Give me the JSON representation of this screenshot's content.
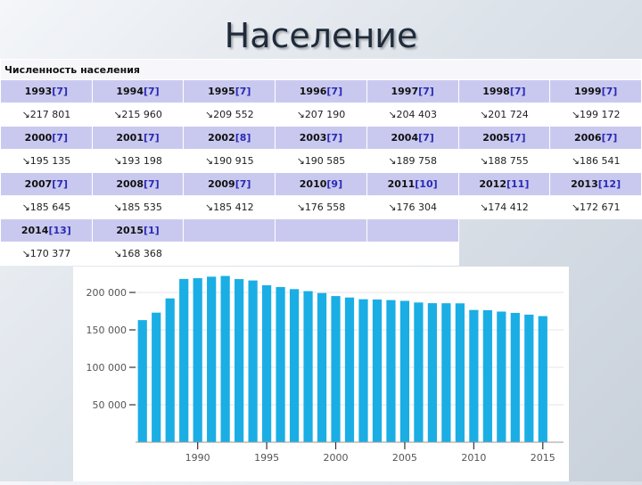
{
  "title": "Население",
  "table": {
    "caption": "Численность населения",
    "arrow": "↘",
    "rows": [
      {
        "years": [
          {
            "year": "1993",
            "ref": "[7]"
          },
          {
            "year": "1994",
            "ref": "[7]"
          },
          {
            "year": "1995",
            "ref": "[7]"
          },
          {
            "year": "1996",
            "ref": "[7]"
          },
          {
            "year": "1997",
            "ref": "[7]"
          },
          {
            "year": "1998",
            "ref": "[7]"
          },
          {
            "year": "1999",
            "ref": "[7]"
          }
        ],
        "values": [
          "217 801",
          "215 960",
          "209 552",
          "207 190",
          "204 403",
          "201 724",
          "199 172"
        ]
      },
      {
        "years": [
          {
            "year": "2000",
            "ref": "[7]"
          },
          {
            "year": "2001",
            "ref": "[7]"
          },
          {
            "year": "2002",
            "ref": "[8]"
          },
          {
            "year": "2003",
            "ref": "[7]"
          },
          {
            "year": "2004",
            "ref": "[7]"
          },
          {
            "year": "2005",
            "ref": "[7]"
          },
          {
            "year": "2006",
            "ref": "[7]"
          }
        ],
        "values": [
          "195 135",
          "193 198",
          "190 915",
          "190 585",
          "189 758",
          "188 755",
          "186 541"
        ]
      },
      {
        "years": [
          {
            "year": "2007",
            "ref": "[7]"
          },
          {
            "year": "2008",
            "ref": "[7]"
          },
          {
            "year": "2009",
            "ref": "[7]"
          },
          {
            "year": "2010",
            "ref": "[9]"
          },
          {
            "year": "2011",
            "ref": "[10]"
          },
          {
            "year": "2012",
            "ref": "[11]"
          },
          {
            "year": "2013",
            "ref": "[12]"
          }
        ],
        "values": [
          "185 645",
          "185 535",
          "185 412",
          "176 558",
          "176 304",
          "174 412",
          "172 671"
        ]
      },
      {
        "years": [
          {
            "year": "2014",
            "ref": "[13]"
          },
          {
            "year": "2015",
            "ref": "[1]"
          }
        ],
        "values": [
          "170 377",
          "168 368"
        ]
      }
    ]
  },
  "chart_data": {
    "type": "bar",
    "x": [
      1986,
      1987,
      1988,
      1989,
      1990,
      1991,
      1992,
      1993,
      1994,
      1995,
      1996,
      1997,
      1998,
      1999,
      2000,
      2001,
      2002,
      2003,
      2004,
      2005,
      2006,
      2007,
      2008,
      2009,
      2010,
      2011,
      2012,
      2013,
      2014,
      2015
    ],
    "values": [
      163000,
      173000,
      192000,
      218000,
      219000,
      221000,
      222000,
      217801,
      215960,
      209552,
      207190,
      204403,
      201724,
      199172,
      195135,
      193198,
      190915,
      190585,
      189758,
      188755,
      186541,
      185645,
      185535,
      185412,
      176558,
      176304,
      174412,
      172671,
      170377,
      168368
    ],
    "yticks": [
      50000,
      100000,
      150000,
      200000
    ],
    "ytick_labels": [
      "50 000",
      "100 000",
      "150 000",
      "200 000"
    ],
    "xticks": [
      1990,
      1995,
      2000,
      2005,
      2010,
      2015
    ],
    "xtick_labels": [
      "1990",
      "1995",
      "2000",
      "2005",
      "2010",
      "2015"
    ],
    "ylim": [
      0,
      225000
    ],
    "xlim": [
      1985.5,
      2016.5
    ],
    "title": "",
    "xlabel": "",
    "ylabel": "",
    "bar_color": "#1aaee5",
    "grid": true
  }
}
